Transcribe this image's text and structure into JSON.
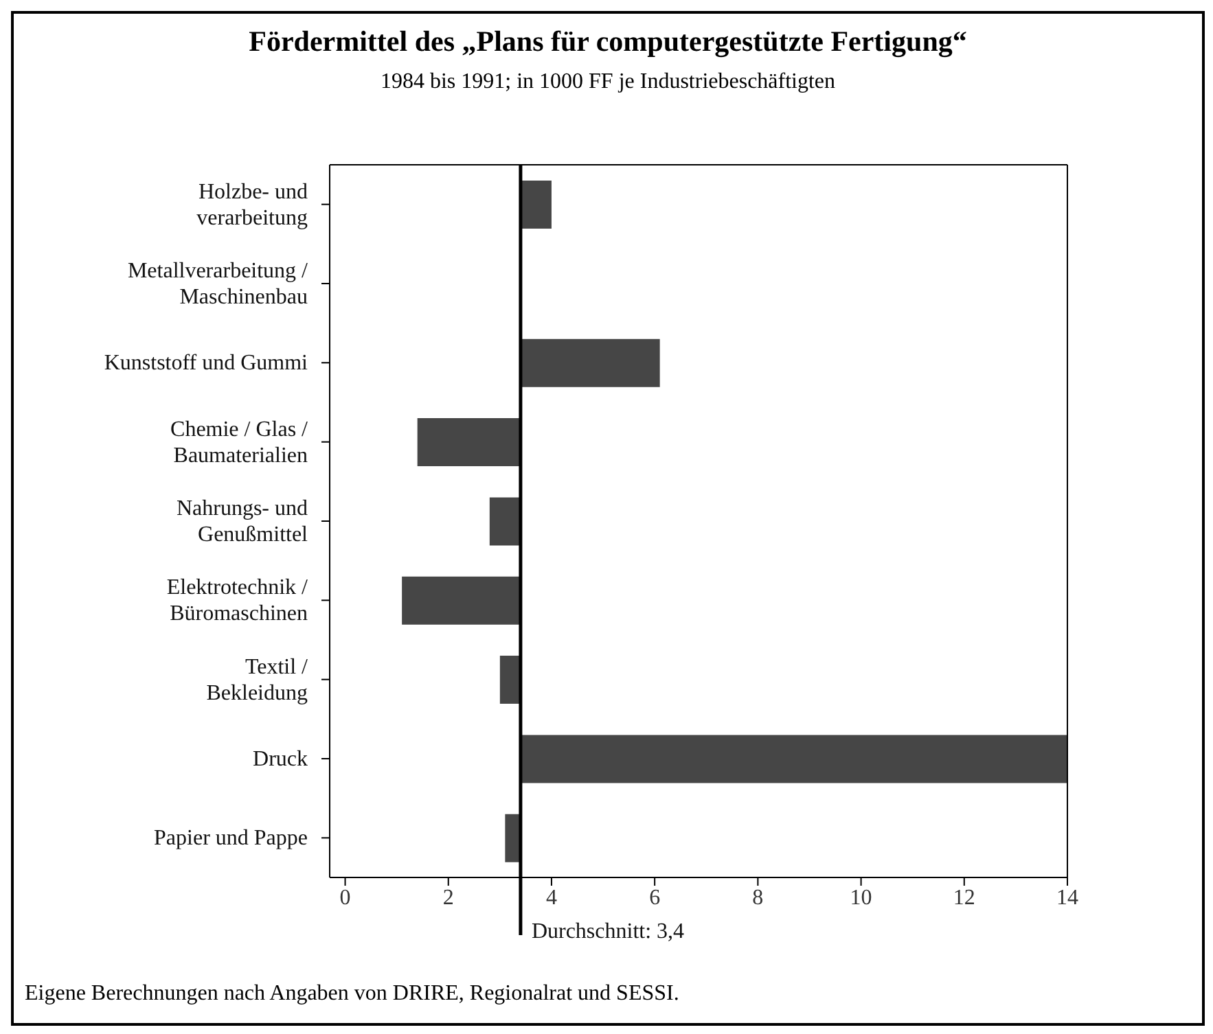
{
  "chart_data": {
    "type": "bar",
    "orientation": "horizontal",
    "title": "Fördermittel des „Plans für computergestützte Fertigung“",
    "subtitle": "1984 bis 1991;  in 1000 FF je Industriebeschäftigten",
    "categories": [
      "Holzbe- und\nverarbeitung",
      "Metallverarbeitung /\nMaschinenbau",
      "Kunststoff und Gummi",
      "Chemie / Glas /\nBaumaterialien",
      "Nahrungs- und\nGenußmittel",
      "Elektrotechnik /\nBüromaschinen",
      "Textil /\nBekleidung",
      "Druck",
      "Papier und Pappe"
    ],
    "base": [
      3.4,
      null,
      3.4,
      3.4,
      3.4,
      3.4,
      3.4,
      3.4,
      3.4
    ],
    "values": [
      0.6,
      null,
      2.7,
      -2.0,
      -0.6,
      -2.3,
      -0.4,
      10.6,
      -0.3
    ],
    "color": "#464646",
    "xlim": [
      -0.3,
      14
    ],
    "xticks": [
      0,
      2,
      4,
      6,
      8,
      10,
      12,
      14
    ],
    "ref_lines": [
      {
        "axis": "x",
        "value": 3.4,
        "label": "Durchschnitt: 3,4",
        "color": "#000000"
      }
    ],
    "annotations": [
      "Eigene Berechnungen nach Angaben von DRIRE, Regionalrat und SESSI."
    ],
    "grid": false
  }
}
